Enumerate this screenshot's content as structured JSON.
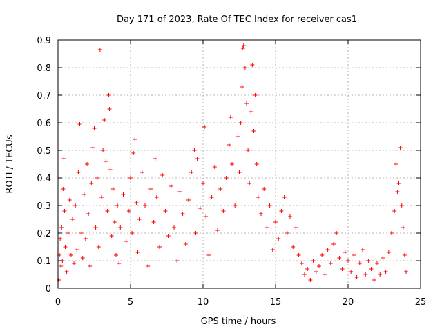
{
  "chart_data": {
    "type": "scatter",
    "title": "Day 171 of 2023, Rate Of TEC Index for receiver cas1",
    "xlabel": "GPS time / hours",
    "ylabel": "ROTI / TECUs",
    "xlim": [
      0,
      25
    ],
    "ylim": [
      0,
      0.9
    ],
    "xticks": [
      0,
      5,
      10,
      15,
      20,
      25
    ],
    "yticks": [
      0,
      0.1,
      0.2,
      0.3,
      0.4,
      0.5,
      0.6,
      0.7,
      0.8,
      0.9
    ],
    "xtick_labels": [
      "0",
      "5",
      "10",
      "15",
      "20",
      "25"
    ],
    "ytick_labels": [
      "0",
      "0.1",
      "0.2",
      "0.3",
      "0.4",
      "0.5",
      "0.6",
      "0.7",
      "0.8",
      "0.9"
    ],
    "grid": true,
    "marker": "+",
    "series": [
      {
        "name": "cas1",
        "color": "#ff0000",
        "points": [
          [
            0.05,
            0.03
          ],
          [
            0.1,
            0.12
          ],
          [
            0.15,
            0.18
          ],
          [
            0.2,
            0.08
          ],
          [
            0.25,
            0.22
          ],
          [
            0.3,
            0.1
          ],
          [
            0.35,
            0.36
          ],
          [
            0.4,
            0.47
          ],
          [
            0.45,
            0.28
          ],
          [
            0.5,
            0.15
          ],
          [
            0.6,
            0.06
          ],
          [
            0.7,
            0.2
          ],
          [
            0.8,
            0.32
          ],
          [
            0.9,
            0.12
          ],
          [
            1.0,
            0.25
          ],
          [
            1.1,
            0.09
          ],
          [
            1.2,
            0.3
          ],
          [
            1.3,
            0.14
          ],
          [
            1.4,
            0.42
          ],
          [
            1.5,
            0.595
          ],
          [
            1.6,
            0.2
          ],
          [
            1.7,
            0.11
          ],
          [
            1.8,
            0.34
          ],
          [
            1.9,
            0.18
          ],
          [
            2.0,
            0.45
          ],
          [
            2.1,
            0.27
          ],
          [
            2.2,
            0.08
          ],
          [
            2.3,
            0.38
          ],
          [
            2.4,
            0.51
          ],
          [
            2.5,
            0.58
          ],
          [
            2.6,
            0.22
          ],
          [
            2.7,
            0.4
          ],
          [
            2.8,
            0.15
          ],
          [
            2.9,
            0.865
          ],
          [
            3.0,
            0.33
          ],
          [
            3.1,
            0.5
          ],
          [
            3.2,
            0.61
          ],
          [
            3.3,
            0.46
          ],
          [
            3.4,
            0.28
          ],
          [
            3.5,
            0.7
          ],
          [
            3.55,
            0.65
          ],
          [
            3.6,
            0.43
          ],
          [
            3.7,
            0.19
          ],
          [
            3.8,
            0.36
          ],
          [
            3.9,
            0.24
          ],
          [
            4.0,
            0.12
          ],
          [
            4.1,
            0.3
          ],
          [
            4.2,
            0.09
          ],
          [
            4.3,
            0.22
          ],
          [
            4.5,
            0.34
          ],
          [
            4.7,
            0.17
          ],
          [
            4.9,
            0.28
          ],
          [
            5.0,
            0.4
          ],
          [
            5.1,
            0.2
          ],
          [
            5.2,
            0.49
          ],
          [
            5.3,
            0.54
          ],
          [
            5.4,
            0.31
          ],
          [
            5.5,
            0.13
          ],
          [
            5.6,
            0.25
          ],
          [
            5.8,
            0.42
          ],
          [
            6.0,
            0.3
          ],
          [
            6.2,
            0.08
          ],
          [
            6.4,
            0.36
          ],
          [
            6.6,
            0.24
          ],
          [
            6.7,
            0.47
          ],
          [
            6.8,
            0.33
          ],
          [
            7.0,
            0.15
          ],
          [
            7.2,
            0.41
          ],
          [
            7.4,
            0.28
          ],
          [
            7.6,
            0.19
          ],
          [
            7.8,
            0.37
          ],
          [
            8.0,
            0.22
          ],
          [
            8.2,
            0.1
          ],
          [
            8.4,
            0.35
          ],
          [
            8.6,
            0.27
          ],
          [
            8.8,
            0.16
          ],
          [
            9.0,
            0.32
          ],
          [
            9.2,
            0.42
          ],
          [
            9.4,
            0.5
          ],
          [
            9.5,
            0.2
          ],
          [
            9.6,
            0.47
          ],
          [
            9.8,
            0.29
          ],
          [
            10.0,
            0.38
          ],
          [
            10.1,
            0.585
          ],
          [
            10.2,
            0.26
          ],
          [
            10.4,
            0.12
          ],
          [
            10.6,
            0.33
          ],
          [
            10.8,
            0.44
          ],
          [
            11.0,
            0.21
          ],
          [
            11.2,
            0.36
          ],
          [
            11.4,
            0.28
          ],
          [
            11.6,
            0.4
          ],
          [
            11.8,
            0.52
          ],
          [
            11.9,
            0.62
          ],
          [
            12.0,
            0.45
          ],
          [
            12.2,
            0.3
          ],
          [
            12.4,
            0.55
          ],
          [
            12.5,
            0.42
          ],
          [
            12.6,
            0.6
          ],
          [
            12.7,
            0.73
          ],
          [
            12.75,
            0.87
          ],
          [
            12.8,
            0.88
          ],
          [
            12.9,
            0.8
          ],
          [
            13.0,
            0.67
          ],
          [
            13.1,
            0.5
          ],
          [
            13.2,
            0.38
          ],
          [
            13.3,
            0.64
          ],
          [
            13.4,
            0.81
          ],
          [
            13.5,
            0.57
          ],
          [
            13.6,
            0.7
          ],
          [
            13.7,
            0.45
          ],
          [
            13.8,
            0.33
          ],
          [
            14.0,
            0.27
          ],
          [
            14.2,
            0.36
          ],
          [
            14.4,
            0.22
          ],
          [
            14.6,
            0.3
          ],
          [
            14.8,
            0.14
          ],
          [
            15.0,
            0.24
          ],
          [
            15.2,
            0.18
          ],
          [
            15.4,
            0.28
          ],
          [
            15.6,
            0.33
          ],
          [
            15.8,
            0.2
          ],
          [
            16.0,
            0.26
          ],
          [
            16.2,
            0.15
          ],
          [
            16.4,
            0.22
          ],
          [
            16.6,
            0.12
          ],
          [
            16.8,
            0.09
          ],
          [
            17.0,
            0.05
          ],
          [
            17.2,
            0.07
          ],
          [
            17.4,
            0.03
          ],
          [
            17.6,
            0.1
          ],
          [
            17.8,
            0.06
          ],
          [
            18.0,
            0.08
          ],
          [
            18.2,
            0.12
          ],
          [
            18.4,
            0.05
          ],
          [
            18.6,
            0.14
          ],
          [
            18.8,
            0.09
          ],
          [
            19.0,
            0.16
          ],
          [
            19.2,
            0.2
          ],
          [
            19.4,
            0.11
          ],
          [
            19.6,
            0.07
          ],
          [
            19.8,
            0.13
          ],
          [
            20.0,
            0.1
          ],
          [
            20.2,
            0.06
          ],
          [
            20.4,
            0.12
          ],
          [
            20.6,
            0.04
          ],
          [
            20.8,
            0.09
          ],
          [
            21.0,
            0.14
          ],
          [
            21.2,
            0.05
          ],
          [
            21.4,
            0.1
          ],
          [
            21.6,
            0.07
          ],
          [
            21.8,
            0.03
          ],
          [
            22.0,
            0.09
          ],
          [
            22.2,
            0.05
          ],
          [
            22.4,
            0.11
          ],
          [
            22.6,
            0.06
          ],
          [
            22.8,
            0.13
          ],
          [
            23.0,
            0.2
          ],
          [
            23.2,
            0.28
          ],
          [
            23.3,
            0.45
          ],
          [
            23.4,
            0.35
          ],
          [
            23.5,
            0.38
          ],
          [
            23.6,
            0.51
          ],
          [
            23.7,
            0.3
          ],
          [
            23.8,
            0.22
          ],
          [
            23.9,
            0.12
          ],
          [
            24.0,
            0.06
          ]
        ]
      }
    ]
  }
}
